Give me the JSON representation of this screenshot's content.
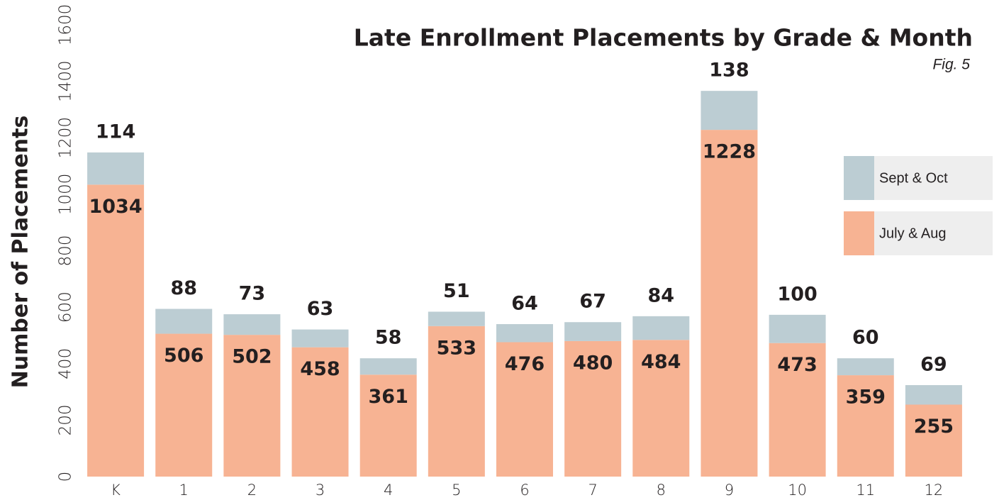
{
  "chart_data": {
    "type": "stacked_bar",
    "title": "Late Enrollment Placements by Grade & Month",
    "subtitle": "Fig. 5",
    "y_label": "Number of Placements",
    "categories": [
      "K",
      "1",
      "2",
      "3",
      "4",
      "5",
      "6",
      "7",
      "8",
      "9",
      "10",
      "11",
      "12"
    ],
    "series": [
      {
        "name": "July & Aug",
        "color": "#f7b393",
        "values": [
          1034,
          506,
          502,
          458,
          361,
          533,
          476,
          480,
          484,
          1228,
          473,
          359,
          255
        ]
      },
      {
        "name": "Sept & Oct",
        "color": "#bccdd3",
        "values": [
          114,
          88,
          73,
          63,
          58,
          51,
          64,
          67,
          84,
          138,
          100,
          60,
          69
        ]
      }
    ],
    "ylim": [
      0,
      1600
    ],
    "yticks": [
      0,
      200,
      400,
      600,
      800,
      1000,
      1200,
      1400,
      1600
    ],
    "grid": false,
    "legend": "right"
  }
}
